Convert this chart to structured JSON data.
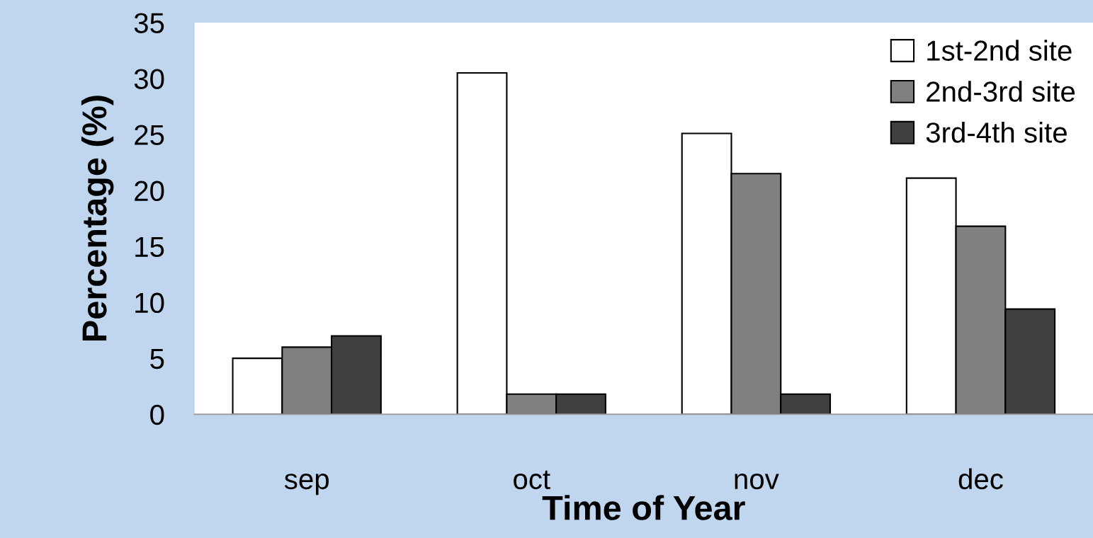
{
  "chart_data": {
    "type": "bar",
    "xlabel": "Time of Year",
    "ylabel": "Percentage (%)",
    "categories": [
      "sep",
      "oct",
      "nov",
      "dec"
    ],
    "series": [
      {
        "name": "1st-2nd site",
        "color": "#ffffff",
        "values": [
          5.0,
          30.5,
          25.1,
          21.1
        ]
      },
      {
        "name": "2nd-3rd site",
        "color": "#808080",
        "values": [
          6.0,
          1.8,
          21.5,
          16.8
        ]
      },
      {
        "name": "3rd-4th site",
        "color": "#404040",
        "values": [
          7.0,
          1.8,
          1.8,
          9.4
        ]
      }
    ],
    "ylim": [
      0,
      35
    ],
    "yticks": [
      0,
      5,
      10,
      15,
      20,
      25,
      30,
      35
    ],
    "grid": false,
    "legend": "top right"
  }
}
